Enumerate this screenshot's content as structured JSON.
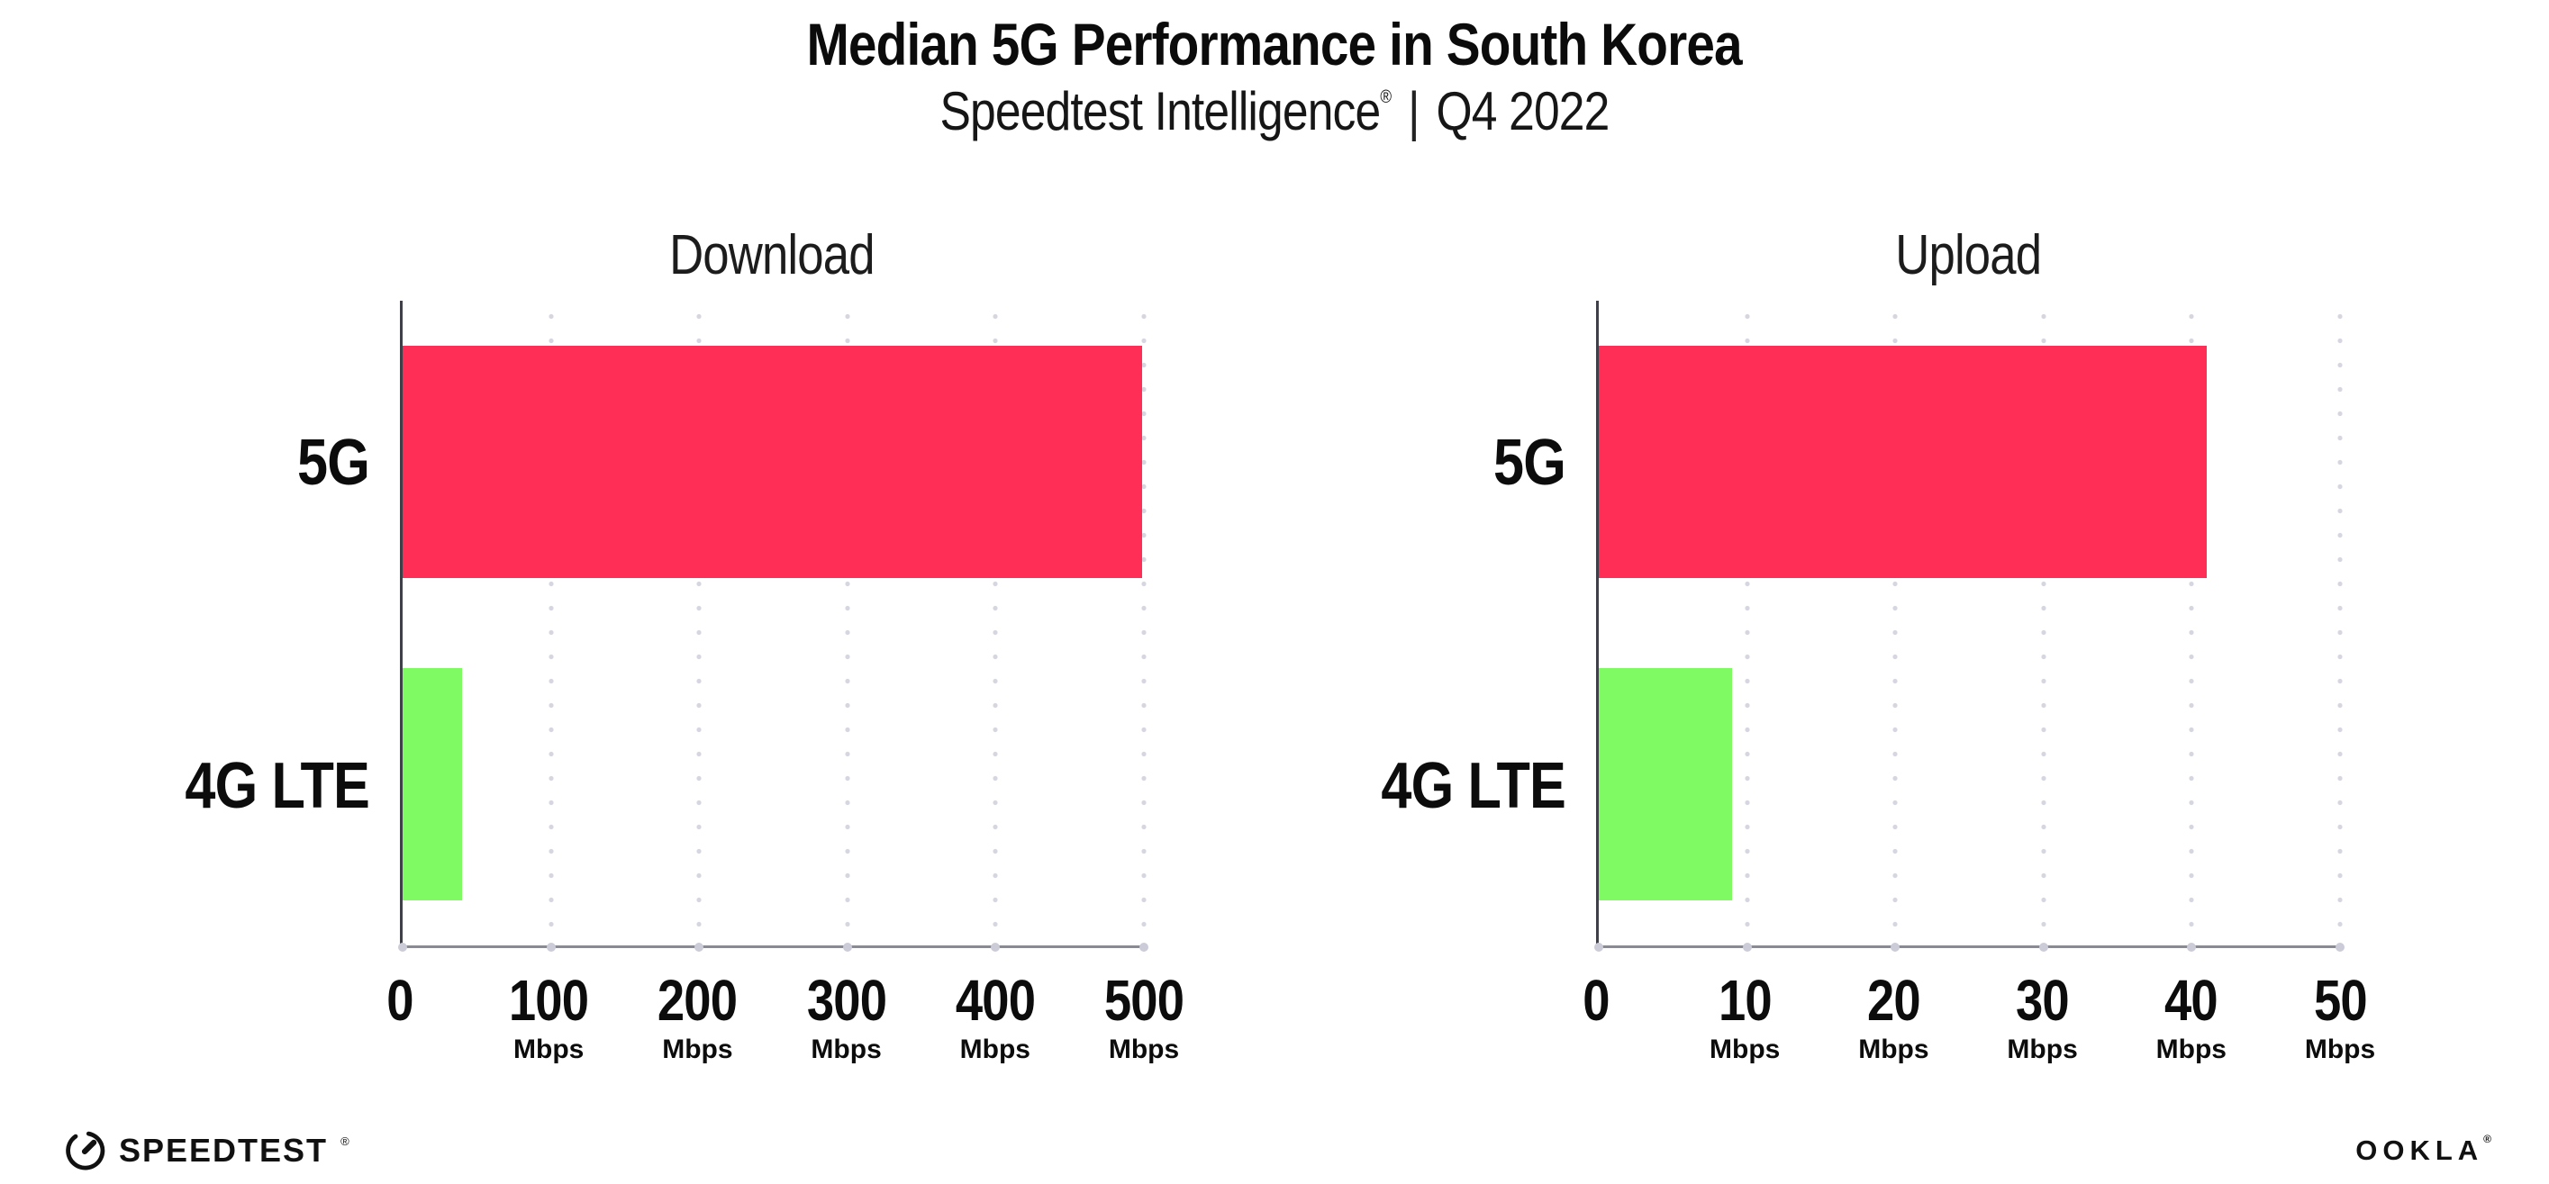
{
  "header": {
    "title": "Median 5G Performance in South Korea",
    "subtitle_brand": "Speedtest Intelligence",
    "subtitle_reg": "®",
    "subtitle_divider": "|",
    "subtitle_period": "Q4 2022"
  },
  "footer": {
    "speedtest_logo_text": "SPEEDTEST",
    "speedtest_reg": "®",
    "ookla_logo_text": "OOKLA",
    "ookla_reg": "®"
  },
  "colors": {
    "bar_5g": "#FF2E56",
    "bar_4g_lte": "#80FA62",
    "gridline": "#D6D6E0",
    "x_axis_line": "#8A8A92",
    "y_axis_line": "#3F3F48",
    "text": "#0C0C0C",
    "background": "#FFFFFF"
  },
  "chart_data": [
    {
      "type": "bar",
      "orientation": "horizontal",
      "title": "Download",
      "categories": [
        "5G",
        "4G LTE"
      ],
      "values": [
        499,
        40
      ],
      "unit": "Mbps",
      "xlim": [
        0,
        500
      ],
      "xticks": [
        0,
        100,
        200,
        300,
        400,
        500
      ],
      "tick_unit_label": "Mbps",
      "grid": "vertical-dotted",
      "legend": "none",
      "bar_colors": [
        "#FF2E56",
        "#80FA62"
      ]
    },
    {
      "type": "bar",
      "orientation": "horizontal",
      "title": "Upload",
      "categories": [
        "5G",
        "4G LTE"
      ],
      "values": [
        41,
        9
      ],
      "unit": "Mbps",
      "xlim": [
        0,
        50
      ],
      "xticks": [
        0,
        10,
        20,
        30,
        40,
        50
      ],
      "tick_unit_label": "Mbps",
      "grid": "vertical-dotted",
      "legend": "none",
      "bar_colors": [
        "#FF2E56",
        "#80FA62"
      ]
    }
  ]
}
